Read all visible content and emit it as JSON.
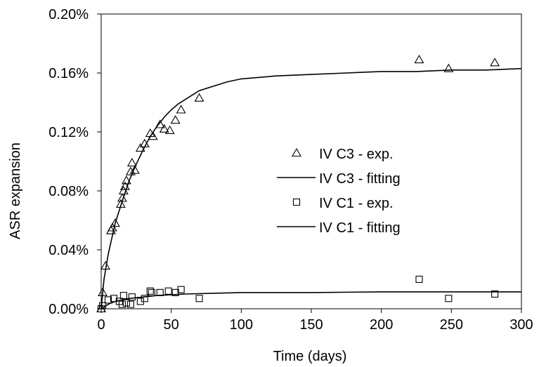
{
  "chart_data": {
    "type": "scatter",
    "title": "",
    "xlabel": "Time (days)",
    "ylabel": "ASR expansion",
    "xlim": [
      0,
      300
    ],
    "ylim": [
      0,
      0.2
    ],
    "x_ticks": [
      0,
      50,
      100,
      150,
      200,
      250,
      300
    ],
    "y_ticks": [
      0.0,
      0.04,
      0.08,
      0.12,
      0.16,
      0.2
    ],
    "y_tick_labels": [
      "0.00%",
      "0.04%",
      "0.08%",
      "0.12%",
      "0.16%",
      "0.20%"
    ],
    "grid": false,
    "legend_position": "center-right",
    "legend": [
      {
        "label": "IV C3 - exp.",
        "marker": "triangle"
      },
      {
        "label": "IV C3 - fitting",
        "marker": "line"
      },
      {
        "label": "IV C1 - exp.",
        "marker": "square"
      },
      {
        "label": "IV C1 - fitting",
        "marker": "line"
      }
    ],
    "series": [
      {
        "name": "IV C3 - exp.",
        "kind": "scatter",
        "marker": "triangle",
        "points": [
          [
            0,
            0.0
          ],
          [
            1,
            0.011
          ],
          [
            3,
            0.029
          ],
          [
            7,
            0.053
          ],
          [
            8,
            0.055
          ],
          [
            10,
            0.058
          ],
          [
            14,
            0.071
          ],
          [
            15,
            0.075
          ],
          [
            16,
            0.08
          ],
          [
            17,
            0.083
          ],
          [
            18,
            0.087
          ],
          [
            21,
            0.093
          ],
          [
            22,
            0.099
          ],
          [
            24,
            0.094
          ],
          [
            28,
            0.109
          ],
          [
            31,
            0.112
          ],
          [
            35,
            0.119
          ],
          [
            37,
            0.117
          ],
          [
            42,
            0.125
          ],
          [
            45,
            0.122
          ],
          [
            49,
            0.121
          ],
          [
            53,
            0.128
          ],
          [
            57,
            0.135
          ],
          [
            70,
            0.143
          ],
          [
            227,
            0.169
          ],
          [
            248,
            0.163
          ],
          [
            281,
            0.167
          ]
        ]
      },
      {
        "name": "IV C3 - fitting",
        "kind": "line",
        "points": [
          [
            0,
            0.0
          ],
          [
            2,
            0.02
          ],
          [
            5,
            0.037
          ],
          [
            10,
            0.058
          ],
          [
            15,
            0.073
          ],
          [
            20,
            0.087
          ],
          [
            25,
            0.098
          ],
          [
            30,
            0.108
          ],
          [
            35,
            0.117
          ],
          [
            40,
            0.124
          ],
          [
            45,
            0.13
          ],
          [
            50,
            0.135
          ],
          [
            55,
            0.139
          ],
          [
            60,
            0.142
          ],
          [
            70,
            0.148
          ],
          [
            80,
            0.151
          ],
          [
            90,
            0.154
          ],
          [
            100,
            0.156
          ],
          [
            125,
            0.158
          ],
          [
            150,
            0.159
          ],
          [
            175,
            0.16
          ],
          [
            200,
            0.161
          ],
          [
            225,
            0.161
          ],
          [
            250,
            0.162
          ],
          [
            275,
            0.162
          ],
          [
            300,
            0.163
          ]
        ]
      },
      {
        "name": "IV C1 - exp.",
        "kind": "scatter",
        "marker": "square",
        "points": [
          [
            0,
            0.0
          ],
          [
            1,
            0.002
          ],
          [
            5,
            0.006
          ],
          [
            9,
            0.007
          ],
          [
            13,
            0.005
          ],
          [
            15,
            0.003
          ],
          [
            16,
            0.009
          ],
          [
            18,
            0.004
          ],
          [
            21,
            0.003
          ],
          [
            22,
            0.008
          ],
          [
            28,
            0.005
          ],
          [
            31,
            0.007
          ],
          [
            35,
            0.012
          ],
          [
            36,
            0.011
          ],
          [
            42,
            0.011
          ],
          [
            48,
            0.012
          ],
          [
            53,
            0.011
          ],
          [
            57,
            0.013
          ],
          [
            70,
            0.007
          ],
          [
            227,
            0.02
          ],
          [
            248,
            0.007
          ],
          [
            281,
            0.01
          ]
        ]
      },
      {
        "name": "IV C1 - fitting",
        "kind": "line",
        "points": [
          [
            0,
            0.0
          ],
          [
            5,
            0.003
          ],
          [
            10,
            0.005
          ],
          [
            20,
            0.007
          ],
          [
            30,
            0.008
          ],
          [
            40,
            0.009
          ],
          [
            50,
            0.0095
          ],
          [
            60,
            0.01
          ],
          [
            80,
            0.0105
          ],
          [
            100,
            0.011
          ],
          [
            150,
            0.011
          ],
          [
            200,
            0.0115
          ],
          [
            250,
            0.0115
          ],
          [
            300,
            0.0115
          ]
        ]
      }
    ]
  }
}
